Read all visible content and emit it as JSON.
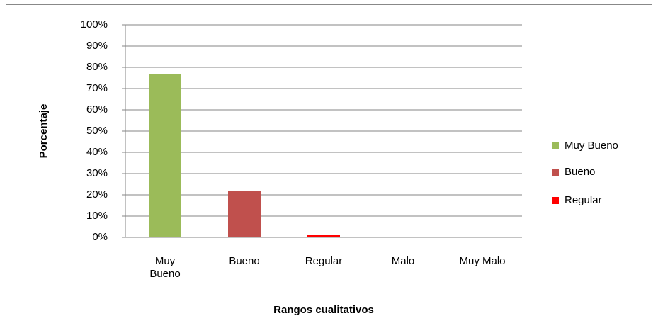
{
  "chart_data": {
    "type": "bar",
    "y_label": "Porcentaje",
    "x_label": "Rangos cualitativos",
    "categories": [
      "Muy Bueno",
      "Bueno",
      "Regular",
      "Malo",
      "Muy Malo"
    ],
    "series": [
      {
        "name": "Muy Bueno",
        "color": "#9bbb59",
        "values": [
          77,
          null,
          null,
          null,
          null
        ]
      },
      {
        "name": "Bueno",
        "color": "#c0504d",
        "values": [
          null,
          22,
          null,
          null,
          null
        ]
      },
      {
        "name": "Regular",
        "color": "#ff0000",
        "values": [
          null,
          null,
          1,
          null,
          null
        ]
      }
    ],
    "ylim": [
      0,
      100
    ],
    "yticks": [
      {
        "value": 0,
        "label": "0%"
      },
      {
        "value": 10,
        "label": "10%"
      },
      {
        "value": 20,
        "label": "20%"
      },
      {
        "value": 30,
        "label": "30%"
      },
      {
        "value": 40,
        "label": "40%"
      },
      {
        "value": 50,
        "label": "50%"
      },
      {
        "value": 60,
        "label": "60%"
      },
      {
        "value": 70,
        "label": "70%"
      },
      {
        "value": 80,
        "label": "80%"
      },
      {
        "value": 90,
        "label": "90%"
      },
      {
        "value": 100,
        "label": "100%"
      }
    ],
    "grid": true,
    "legend": "right"
  }
}
